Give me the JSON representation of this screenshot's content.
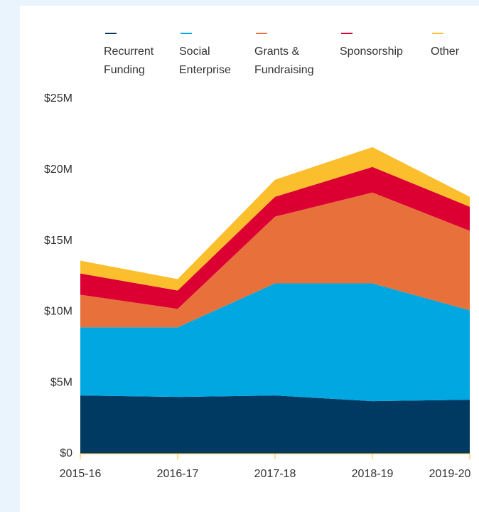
{
  "chart_data": {
    "type": "stacked_area",
    "categories": [
      "2015-16",
      "2016-17",
      "2017-18",
      "2018-19",
      "2019-20"
    ],
    "series": [
      {
        "name": "Recurrent Funding",
        "color": "#003a63",
        "values": [
          4.1,
          4.0,
          4.1,
          3.7,
          3.8
        ]
      },
      {
        "name": "Social Enterprise",
        "color": "#00a7e1",
        "values": [
          4.8,
          4.9,
          7.9,
          8.3,
          6.3
        ]
      },
      {
        "name": "Grants & Fundraising",
        "color": "#e8713b",
        "values": [
          2.3,
          1.3,
          4.7,
          6.4,
          5.6
        ]
      },
      {
        "name": "Sponsorship",
        "color": "#dc0032",
        "values": [
          1.5,
          1.3,
          1.4,
          1.8,
          1.7
        ]
      },
      {
        "name": "Other",
        "color": "#fbbf2d",
        "values": [
          0.9,
          0.8,
          1.2,
          1.4,
          0.7
        ]
      }
    ],
    "ylim": [
      0,
      25
    ],
    "yticks": [
      {
        "value": 0,
        "label": "$0"
      },
      {
        "value": 5,
        "label": "$5M"
      },
      {
        "value": 10,
        "label": "$10M"
      },
      {
        "value": 15,
        "label": "$15M"
      },
      {
        "value": 20,
        "label": "$20M"
      },
      {
        "value": 25,
        "label": "$25M"
      }
    ],
    "legend": "top"
  }
}
